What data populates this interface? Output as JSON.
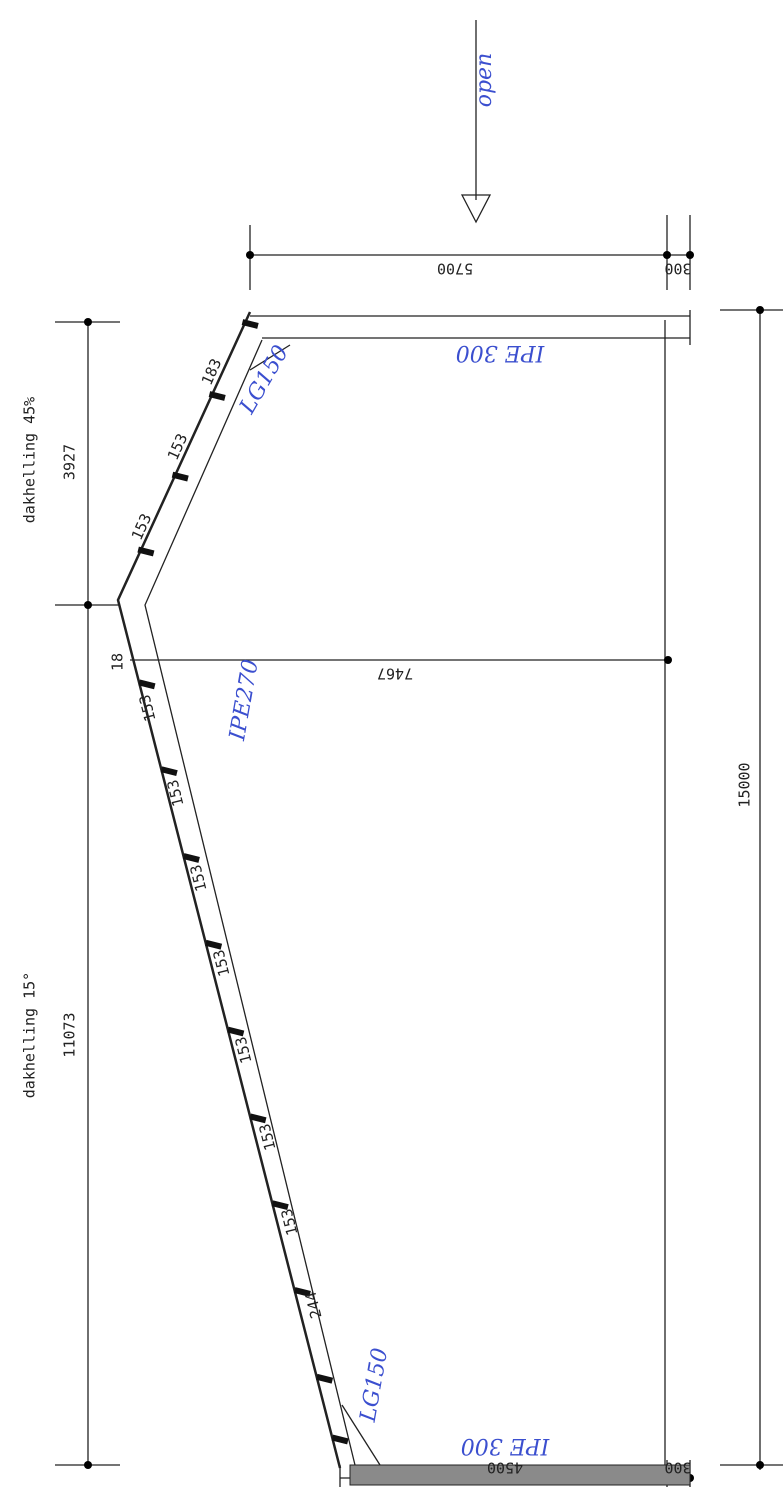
{
  "note": "open",
  "slopes": [
    "dakhelling 45%",
    "dakhelling 15°"
  ],
  "dimensions": {
    "top_roof": "3927",
    "bottom_roof": "11073",
    "total": "15000",
    "column_height": "5700",
    "top_offset": "300",
    "ridge_height": "7467",
    "eave_height": "4500",
    "bottom_offset": "300",
    "ridge_offset": "18"
  },
  "spacings": [
    "183",
    "153",
    "153",
    "153",
    "153",
    "153",
    "153",
    "153",
    "153",
    "153",
    "244"
  ],
  "profiles": [
    "IPE 300",
    "LG150",
    "IPE270",
    "LG150",
    "IPE 300"
  ]
}
